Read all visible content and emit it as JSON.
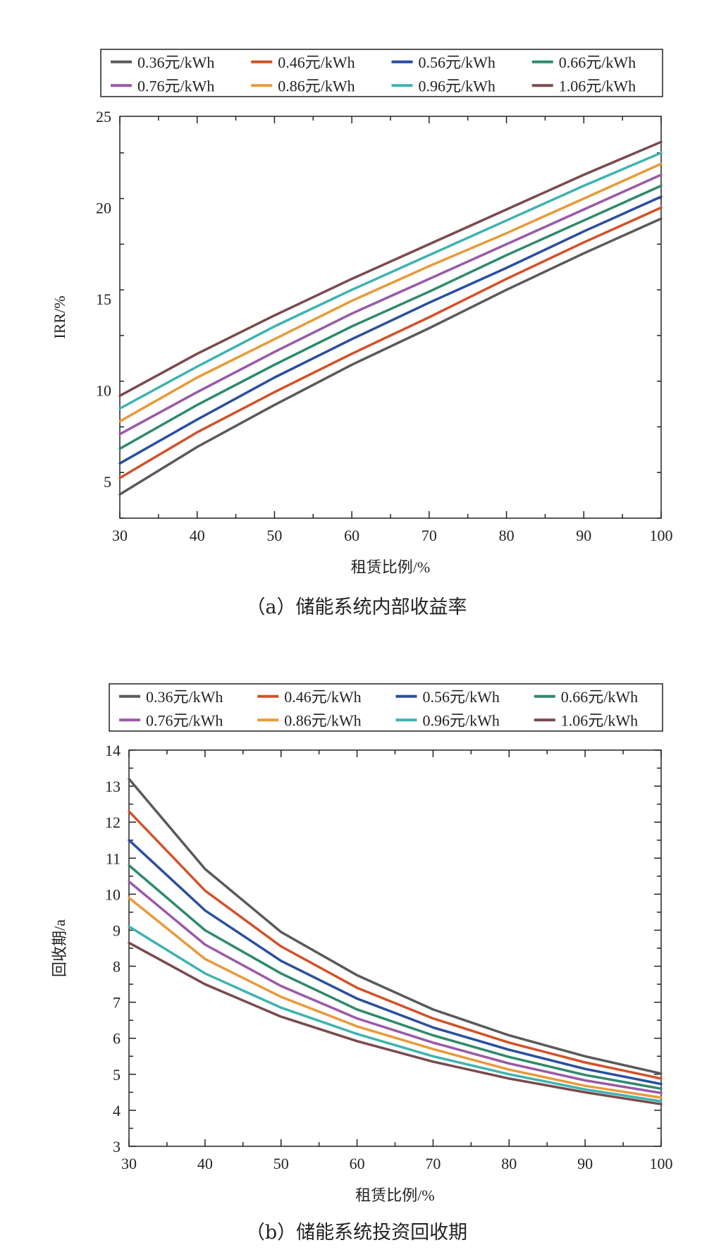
{
  "colors": [
    "#5a5a5a",
    "#d2522a",
    "#2a4fa0",
    "#2f8a6a",
    "#9a5aa8",
    "#e89a3a",
    "#3fb3b0",
    "#7a4a4e"
  ],
  "chart_data": [
    {
      "type": "line",
      "caption": "（a）储能系统内部收益率",
      "xlabel": "租赁比例/%",
      "ylabel": "IRR/%",
      "xlim": [
        30,
        100
      ],
      "ylim": [
        3,
        25
      ],
      "xticks": [
        30,
        40,
        50,
        60,
        70,
        80,
        90,
        100
      ],
      "yticks": [
        5,
        10,
        15,
        20,
        25
      ],
      "legend_position": "top",
      "x": [
        30,
        40,
        50,
        60,
        70,
        80,
        90,
        100
      ],
      "series": [
        {
          "name": "0.36元/kWh",
          "values": [
            4.3,
            6.9,
            9.2,
            11.4,
            13.4,
            15.5,
            17.5,
            19.4
          ]
        },
        {
          "name": "0.46元/kWh",
          "values": [
            5.2,
            7.7,
            9.9,
            12.0,
            14.0,
            16.1,
            18.1,
            20.0
          ]
        },
        {
          "name": "0.56元/kWh",
          "values": [
            6.0,
            8.4,
            10.7,
            12.8,
            14.8,
            16.7,
            18.7,
            20.6
          ]
        },
        {
          "name": "0.66元/kWh",
          "values": [
            6.8,
            9.2,
            11.4,
            13.5,
            15.4,
            17.4,
            19.3,
            21.2
          ]
        },
        {
          "name": "0.76元/kWh",
          "values": [
            7.6,
            9.9,
            12.1,
            14.2,
            16.1,
            18.0,
            19.9,
            21.8
          ]
        },
        {
          "name": "0.86元/kWh",
          "values": [
            8.3,
            10.7,
            12.8,
            14.9,
            16.8,
            18.6,
            20.5,
            22.4
          ]
        },
        {
          "name": "0.96元/kWh",
          "values": [
            9.0,
            11.3,
            13.5,
            15.5,
            17.4,
            19.3,
            21.2,
            23.0
          ]
        },
        {
          "name": "1.06元/kWh",
          "values": [
            9.7,
            12.0,
            14.1,
            16.1,
            18.0,
            19.9,
            21.8,
            23.6
          ]
        }
      ]
    },
    {
      "type": "line",
      "caption": "（b）储能系统投资回收期",
      "xlabel": "租赁比例/%",
      "ylabel": "回收期/a",
      "xlim": [
        30,
        100
      ],
      "ylim": [
        3,
        14
      ],
      "xticks": [
        30,
        40,
        50,
        60,
        70,
        80,
        90,
        100
      ],
      "yticks": [
        3,
        4,
        5,
        6,
        7,
        8,
        9,
        10,
        11,
        12,
        13,
        14
      ],
      "legend_position": "top",
      "x": [
        30,
        40,
        50,
        60,
        70,
        80,
        90,
        100
      ],
      "series": [
        {
          "name": "0.36元/kWh",
          "values": [
            13.2,
            10.7,
            8.95,
            7.75,
            6.8,
            6.08,
            5.5,
            5.02
          ]
        },
        {
          "name": "0.46元/kWh",
          "values": [
            12.3,
            10.1,
            8.55,
            7.4,
            6.55,
            5.88,
            5.33,
            4.88
          ]
        },
        {
          "name": "0.56元/kWh",
          "values": [
            11.5,
            9.55,
            8.15,
            7.1,
            6.3,
            5.68,
            5.15,
            4.73
          ]
        },
        {
          "name": "0.66元/kWh",
          "values": [
            10.8,
            9.0,
            7.8,
            6.8,
            6.08,
            5.48,
            4.98,
            4.6
          ]
        },
        {
          "name": "0.76元/kWh",
          "values": [
            10.35,
            8.6,
            7.45,
            6.55,
            5.88,
            5.3,
            4.83,
            4.48
          ]
        },
        {
          "name": "0.86元/kWh",
          "values": [
            9.9,
            8.2,
            7.15,
            6.33,
            5.7,
            5.13,
            4.68,
            4.35
          ]
        },
        {
          "name": "0.96元/kWh",
          "values": [
            9.1,
            7.8,
            6.85,
            6.12,
            5.5,
            5.0,
            4.58,
            4.25
          ]
        },
        {
          "name": "1.06元/kWh",
          "values": [
            8.65,
            7.5,
            6.6,
            5.92,
            5.35,
            4.88,
            4.5,
            4.17
          ]
        }
      ]
    }
  ]
}
